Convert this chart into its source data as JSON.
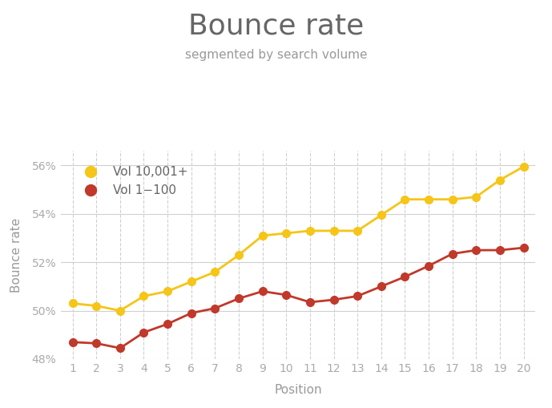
{
  "title": "Bounce rate",
  "subtitle": "segmented by search volume",
  "xlabel": "Position",
  "ylabel": "Bounce rate",
  "positions": [
    1,
    2,
    3,
    4,
    5,
    6,
    7,
    8,
    9,
    10,
    11,
    12,
    13,
    14,
    15,
    16,
    17,
    18,
    19,
    20
  ],
  "vol_high": [
    50.3,
    50.2,
    50.0,
    50.6,
    50.8,
    51.2,
    51.6,
    52.3,
    53.1,
    53.2,
    53.3,
    53.3,
    53.3,
    53.95,
    54.6,
    54.6,
    54.6,
    54.7,
    55.4,
    55.95
  ],
  "vol_low": [
    48.7,
    48.65,
    48.45,
    49.1,
    49.45,
    49.9,
    50.1,
    50.5,
    50.8,
    50.65,
    50.35,
    50.45,
    50.6,
    51.0,
    51.4,
    51.85,
    52.35,
    52.5,
    52.5,
    52.6
  ],
  "high_color": "#f5c518",
  "low_color": "#c0392b",
  "high_label": "Vol 10,001+",
  "low_label": "Vol 1−100",
  "ylim_min": 48.0,
  "ylim_max": 56.6,
  "yticks": [
    48,
    50,
    52,
    54,
    56
  ],
  "ytick_labels": [
    "48%",
    "50%",
    "52%",
    "54%",
    "56%"
  ],
  "background_color": "#ffffff",
  "grid_color": "#d0d0d0",
  "title_color": "#666666",
  "subtitle_color": "#999999",
  "axis_label_color": "#999999",
  "tick_color": "#aaaaaa",
  "title_fontsize": 26,
  "subtitle_fontsize": 11,
  "tick_fontsize": 10,
  "label_fontsize": 11,
  "legend_fontsize": 11,
  "line_width": 2.0,
  "marker_size": 7
}
